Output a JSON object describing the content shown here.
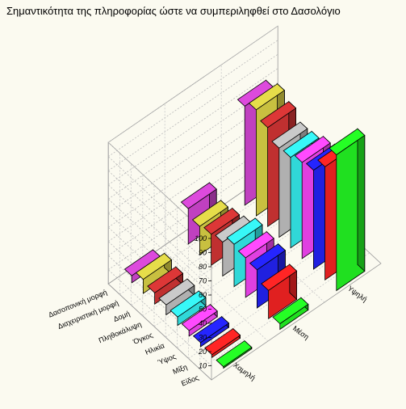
{
  "title": "Σημαντικότητα της πληροφορίας ώστε να συμπεριληφθεί στο Δασολόγιο",
  "chart_data": {
    "type": "bar3d",
    "title": "Σημαντικότητα της πληροφορίας ώστε να συμπεριληφθεί στο Δασολόγιο",
    "zlim": [
      0,
      100
    ],
    "zticks": [
      10,
      20,
      30,
      40,
      50,
      60,
      70,
      80,
      90,
      100
    ],
    "categories": [
      "Δασοπονική μορφή",
      "Διαχειριστική μορφή",
      "Δομή",
      "Πληθοκάλυψη",
      "Όγκος",
      "Ηλικία",
      "Ύψος",
      "Μίξη",
      "Είδος"
    ],
    "levels": [
      "Χαμηλή",
      "Μέση",
      "Υψηλή"
    ],
    "series": [
      {
        "name": "Χαμηλή",
        "values": [
          5,
          10,
          8,
          7,
          6,
          4,
          3,
          2,
          1
        ]
      },
      {
        "name": "Μέση",
        "values": [
          25,
          20,
          22,
          24,
          30,
          28,
          27,
          20,
          4
        ]
      },
      {
        "name": "Υψηλή",
        "values": [
          70,
          75,
          70,
          63,
          64,
          68,
          70,
          80,
          96
        ]
      }
    ],
    "colors": [
      "#c040c0",
      "#c8c040",
      "#c03030",
      "#b0b0b0",
      "#30d8d8",
      "#e040e0",
      "#2020e0",
      "#e02020",
      "#20e020"
    ],
    "grid": true
  }
}
